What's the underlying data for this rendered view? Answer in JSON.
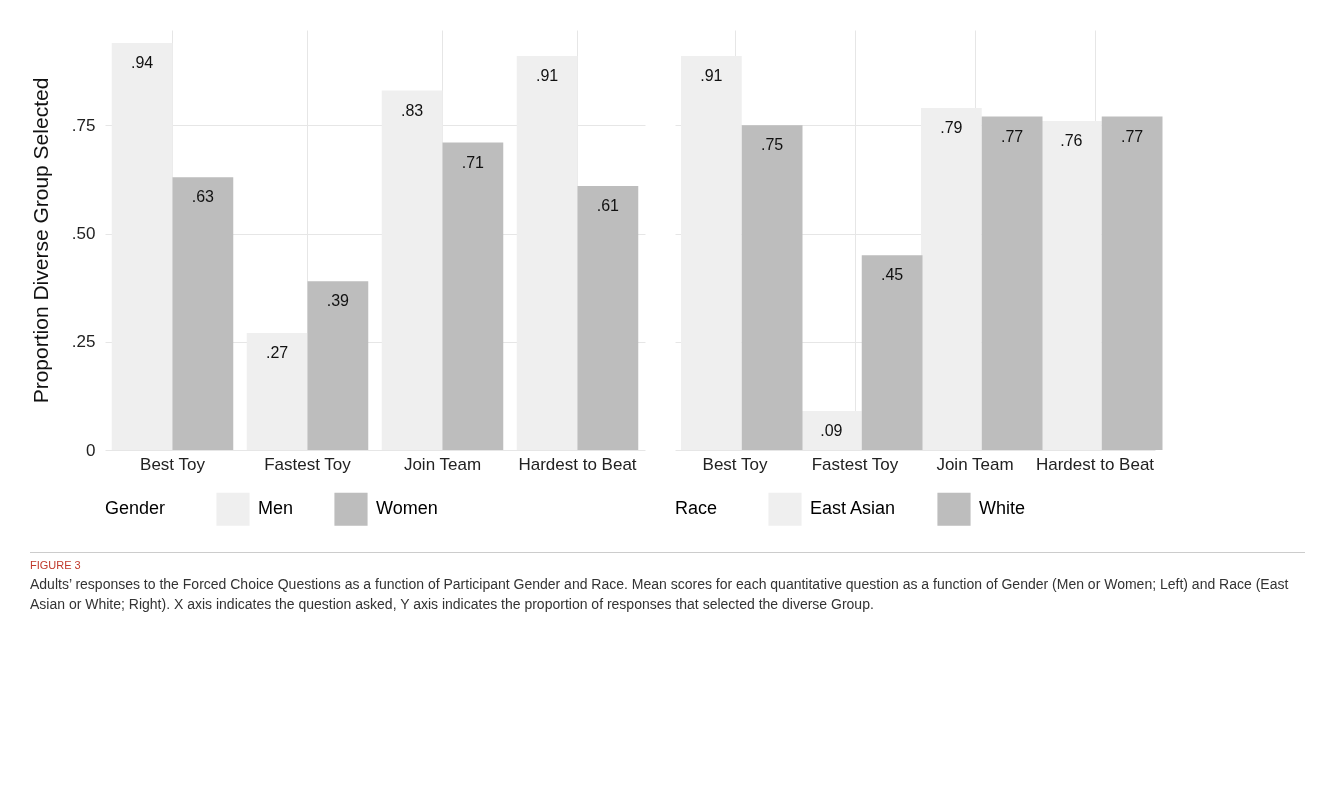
{
  "chart_data": [
    {
      "type": "bar",
      "ylabel": "Proportion Diverse Group Selected",
      "legend_title": "Gender",
      "categories": [
        "Best Toy",
        "Fastest Toy",
        "Join Team",
        "Hardest to Beat"
      ],
      "series": [
        {
          "name": "Men",
          "color": "#efefef",
          "values": [
            0.94,
            0.27,
            0.83,
            0.91
          ],
          "value_labels": [
            ".94",
            ".27",
            ".83",
            ".91"
          ]
        },
        {
          "name": "Women",
          "color": "#bdbdbd",
          "values": [
            0.63,
            0.39,
            0.71,
            0.61
          ],
          "value_labels": [
            ".63",
            ".39",
            ".71",
            ".61"
          ]
        }
      ],
      "ylim": [
        0,
        0.97
      ],
      "yticks": [
        0,
        {
          "value": 0.25,
          "label": ".25"
        },
        {
          "value": 0.5,
          "label": ".50"
        },
        {
          "value": 0.75,
          "label": ".75"
        }
      ],
      "grid": true,
      "legend": "bottom",
      "annotations": [
        "FIGURE 3",
        "Adults’ responses to the Forced Choice Questions as a function of Participant Gender and Race. Mean scores for each quantitative question as a function of Gender (Men or Women; Left) and Race (East Asian or White; Right). X axis indicates the question asked, Y axis indicates the proportion of responses that selected the diverse Group."
      ]
    },
    {
      "type": "bar",
      "legend_title": "Race",
      "categories": [
        "Best Toy",
        "Fastest Toy",
        "Join Team",
        "Hardest to Beat"
      ],
      "series": [
        {
          "name": "East Asian",
          "color": "#efefef",
          "values": [
            0.91,
            0.09,
            0.79,
            0.76
          ],
          "value_labels": [
            ".91",
            ".09",
            ".79",
            ".76"
          ]
        },
        {
          "name": "White",
          "color": "#bdbdbd",
          "values": [
            0.75,
            0.45,
            0.77,
            0.77
          ],
          "value_labels": [
            ".75",
            ".45",
            ".77",
            ".77"
          ]
        }
      ],
      "ylim": [
        0,
        0.97
      ],
      "yticks": [
        0,
        0.25,
        0.5,
        0.75
      ],
      "grid": true,
      "legend": "bottom",
      "tick_labels": "x"
    }
  ]
}
